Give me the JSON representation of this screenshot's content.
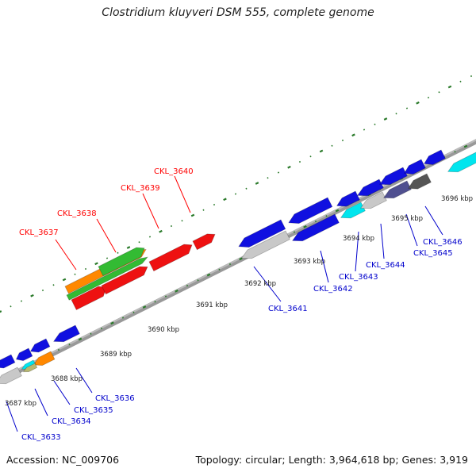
{
  "title": "Clostridium kluyveri DSM 555, complete genome",
  "footer": {
    "accession": "Accession: NC_009706",
    "summary": "Topology: circular; Length: 3,964,618 bp; Genes: 3,919"
  },
  "colors": {
    "forward_label": "#ff0000",
    "reverse_label": "#0000cc",
    "tick": "#2a7a2a",
    "backbone": "#888888",
    "gene_blue": "#1010e0",
    "gene_red": "#ee1111",
    "gene_green": "#33bb33",
    "gene_orange": "#ff8800",
    "gene_cyan": "#00e5ee",
    "gene_lightgray": "#c8c8c8",
    "gene_slate": "#505090",
    "gene_darkgray": "#555555",
    "gene_tan": "#b8b870"
  },
  "kbp_labels": [
    "3687 kbp",
    "3688 kbp",
    "3689 kbp",
    "3690 kbp",
    "3691 kbp",
    "3692 kbp",
    "3693 kbp",
    "3694 kbp",
    "3695 kbp",
    "3696 kbp"
  ],
  "forward_genes": [
    "CKL_3637",
    "CKL_3638",
    "CKL_3639",
    "CKL_3640"
  ],
  "reverse_genes": [
    "CKL_3633",
    "CKL_3634",
    "CKL_3635",
    "CKL_3636",
    "CKL_3641",
    "CKL_3642",
    "CKL_3643",
    "CKL_3644",
    "CKL_3645",
    "CKL_3646"
  ]
}
